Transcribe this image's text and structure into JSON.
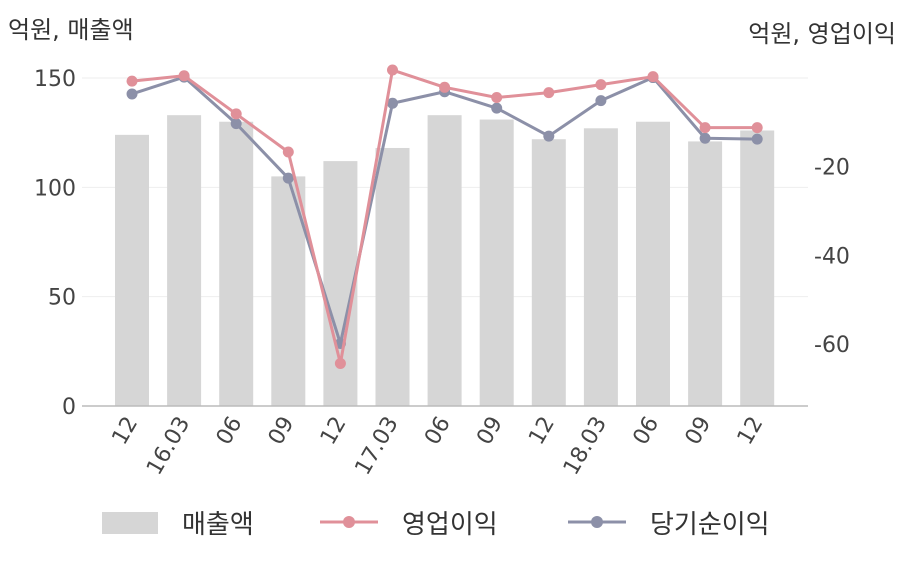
{
  "chart_data": {
    "type": "bar+line",
    "left_axis_title": "억원, 매출액",
    "right_axis_title": "억원, 영업이익",
    "categories": [
      "12",
      "16.03",
      "06",
      "09",
      "12",
      "17.03",
      "06",
      "09",
      "12",
      "18.03",
      "06",
      "09",
      "12"
    ],
    "left_axis": {
      "min": 0,
      "max": 150,
      "ticks": [
        0,
        50,
        100,
        150
      ]
    },
    "right_axis": {
      "min": -74,
      "max": 0,
      "ticks": [
        -20,
        -40,
        -60
      ]
    },
    "series": [
      {
        "name": "매출액",
        "type": "bar",
        "axis": "left",
        "color": "#d6d6d6",
        "values": [
          124,
          133,
          130,
          105,
          112,
          118,
          133,
          131,
          122,
          127,
          130,
          121,
          126
        ]
      },
      {
        "name": "영업이익",
        "type": "line",
        "axis": "right",
        "color": "#e09099",
        "values": [
          -0.7,
          0.5,
          -8.1,
          -16.7,
          -64.4,
          1.8,
          -2.1,
          -4.4,
          -3.3,
          -1.5,
          0.3,
          -11.2,
          -11.2
        ]
      },
      {
        "name": "당기순이익",
        "type": "line",
        "axis": "right",
        "color": "#8c90a8",
        "values": [
          -3.6,
          0.2,
          -10.3,
          -22.6,
          -59.9,
          -5.7,
          -3.1,
          -6.8,
          -13.1,
          -5.1,
          0.1,
          -13.6,
          -13.8
        ]
      }
    ],
    "grid": true,
    "legend_position": "bottom"
  }
}
